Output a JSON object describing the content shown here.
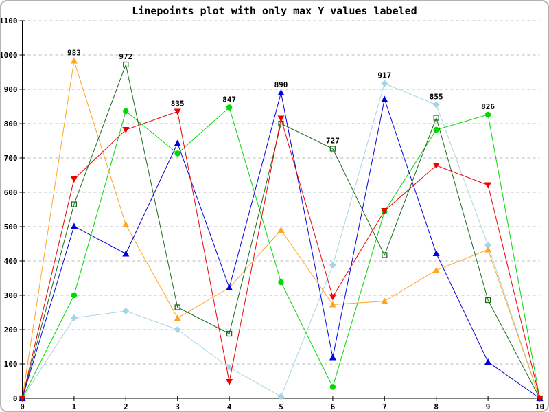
{
  "window": {
    "background": "#ffffff",
    "border_color": "#b3b3b3"
  },
  "chart_data": {
    "type": "line",
    "title": "Linepoints plot with only max Y values labeled",
    "xlabel": "",
    "ylabel": "",
    "xlim": [
      0,
      10
    ],
    "ylim": [
      0,
      1100
    ],
    "x": [
      0,
      1,
      2,
      3,
      4,
      5,
      6,
      7,
      8,
      9,
      10
    ],
    "x_ticks": [
      "0",
      "1",
      "2",
      "3",
      "4",
      "5",
      "6",
      "7",
      "8",
      "9",
      "10"
    ],
    "y_ticks": [
      0,
      100,
      200,
      300,
      400,
      500,
      600,
      700,
      800,
      900,
      1000,
      1100
    ],
    "grid": "horizontal-dashed",
    "grid_color": "#b9b9b9",
    "axis_color": "#000000",
    "label_color": "#000000",
    "legend": "none",
    "series": [
      {
        "name": "light-blue",
        "color": "#a6d4e4",
        "marker": "diamond",
        "values": [
          0,
          234,
          254,
          200,
          90,
          5,
          388,
          917,
          855,
          446,
          0
        ]
      },
      {
        "name": "green",
        "color": "#00d800",
        "marker": "circle",
        "values": [
          0,
          300,
          836,
          713,
          847,
          338,
          33,
          544,
          782,
          826,
          0
        ]
      },
      {
        "name": "orange",
        "color": "#ffa620",
        "marker": "triangle-up",
        "values": [
          0,
          983,
          506,
          234,
          322,
          490,
          273,
          283,
          373,
          433,
          0
        ]
      },
      {
        "name": "dark-green",
        "color": "#1a6b1a",
        "marker": "square-open",
        "values": [
          0,
          565,
          972,
          265,
          188,
          800,
          727,
          417,
          817,
          286,
          0
        ]
      },
      {
        "name": "blue",
        "color": "#0000e0",
        "marker": "triangle-up",
        "values": [
          0,
          501,
          421,
          743,
          322,
          890,
          119,
          871,
          422,
          106,
          0
        ]
      },
      {
        "name": "red",
        "color": "#ee0000",
        "marker": "triangle-down",
        "values": [
          0,
          638,
          782,
          835,
          48,
          815,
          295,
          546,
          678,
          621,
          0
        ]
      }
    ],
    "point_labels": [
      {
        "x": 1,
        "value": 983
      },
      {
        "x": 2,
        "value": 972
      },
      {
        "x": 3,
        "value": 835
      },
      {
        "x": 4,
        "value": 847
      },
      {
        "x": 5,
        "value": 890
      },
      {
        "x": 6,
        "value": 727
      },
      {
        "x": 7,
        "value": 917
      },
      {
        "x": 8,
        "value": 855
      },
      {
        "x": 9,
        "value": 826
      }
    ]
  }
}
